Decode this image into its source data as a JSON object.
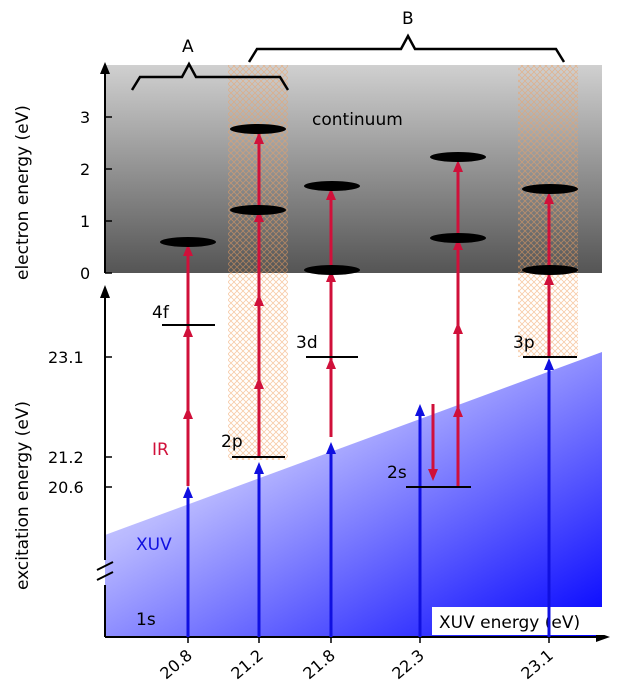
{
  "labels": {
    "continuum": "continuum",
    "group_a": "A",
    "group_b": "B",
    "xuv": "XUV",
    "ir": "IR",
    "ground": "1s",
    "xuv_energy_axis": "XUV energy (eV)",
    "electron_energy_axis": "electron energy (eV)",
    "excitation_energy_axis": "excitation energy (eV)"
  },
  "electron_ticks": [
    "0",
    "1",
    "2",
    "3"
  ],
  "excitation_ticks": [
    "20.6",
    "21.2",
    "23.1"
  ],
  "xuv_ticks": [
    "20.8",
    "21.2",
    "21.8",
    "22.3",
    "23.1"
  ],
  "states": [
    "4f",
    "2p",
    "3d",
    "2s",
    "3p"
  ],
  "colors": {
    "xuv": "#1010e0",
    "ir": "#d0103a",
    "continuum_top": "#cfcfcf",
    "continuum_bottom": "#5a5a5a",
    "xuv_fill": "#0000ff"
  }
}
